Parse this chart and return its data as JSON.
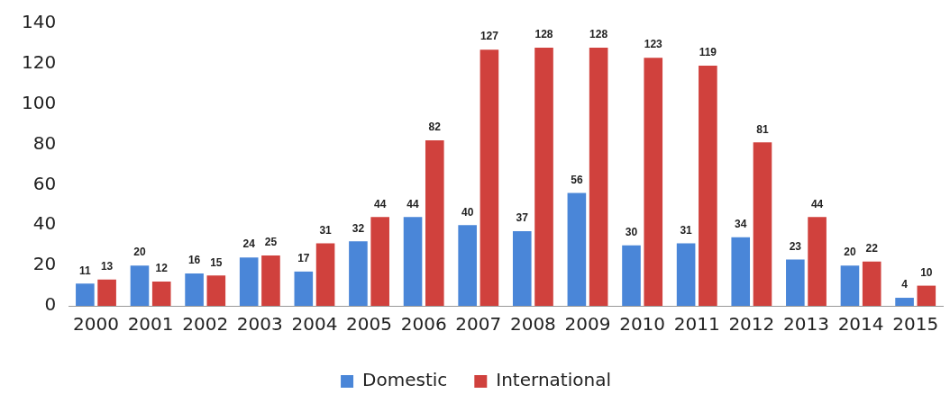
{
  "chart_data": {
    "type": "bar",
    "categories": [
      "2000",
      "2001",
      "2002",
      "2003",
      "2004",
      "2005",
      "2006",
      "2007",
      "2008",
      "2009",
      "2010",
      "2011",
      "2012",
      "2013",
      "2014",
      "2015"
    ],
    "series": [
      {
        "name": "Domestic",
        "color": "#4a86d8",
        "values": [
          11,
          20,
          16,
          24,
          17,
          32,
          44,
          40,
          37,
          56,
          30,
          31,
          34,
          23,
          20,
          4
        ]
      },
      {
        "name": "International",
        "color": "#d0413d",
        "values": [
          13,
          12,
          15,
          25,
          31,
          44,
          82,
          127,
          128,
          128,
          123,
          119,
          81,
          44,
          22,
          10
        ]
      }
    ],
    "ylim": [
      0,
      140
    ],
    "yticks": [
      0,
      20,
      40,
      60,
      80,
      100,
      120,
      140
    ],
    "grid": false,
    "legend": "bottom",
    "data_labels": true
  }
}
